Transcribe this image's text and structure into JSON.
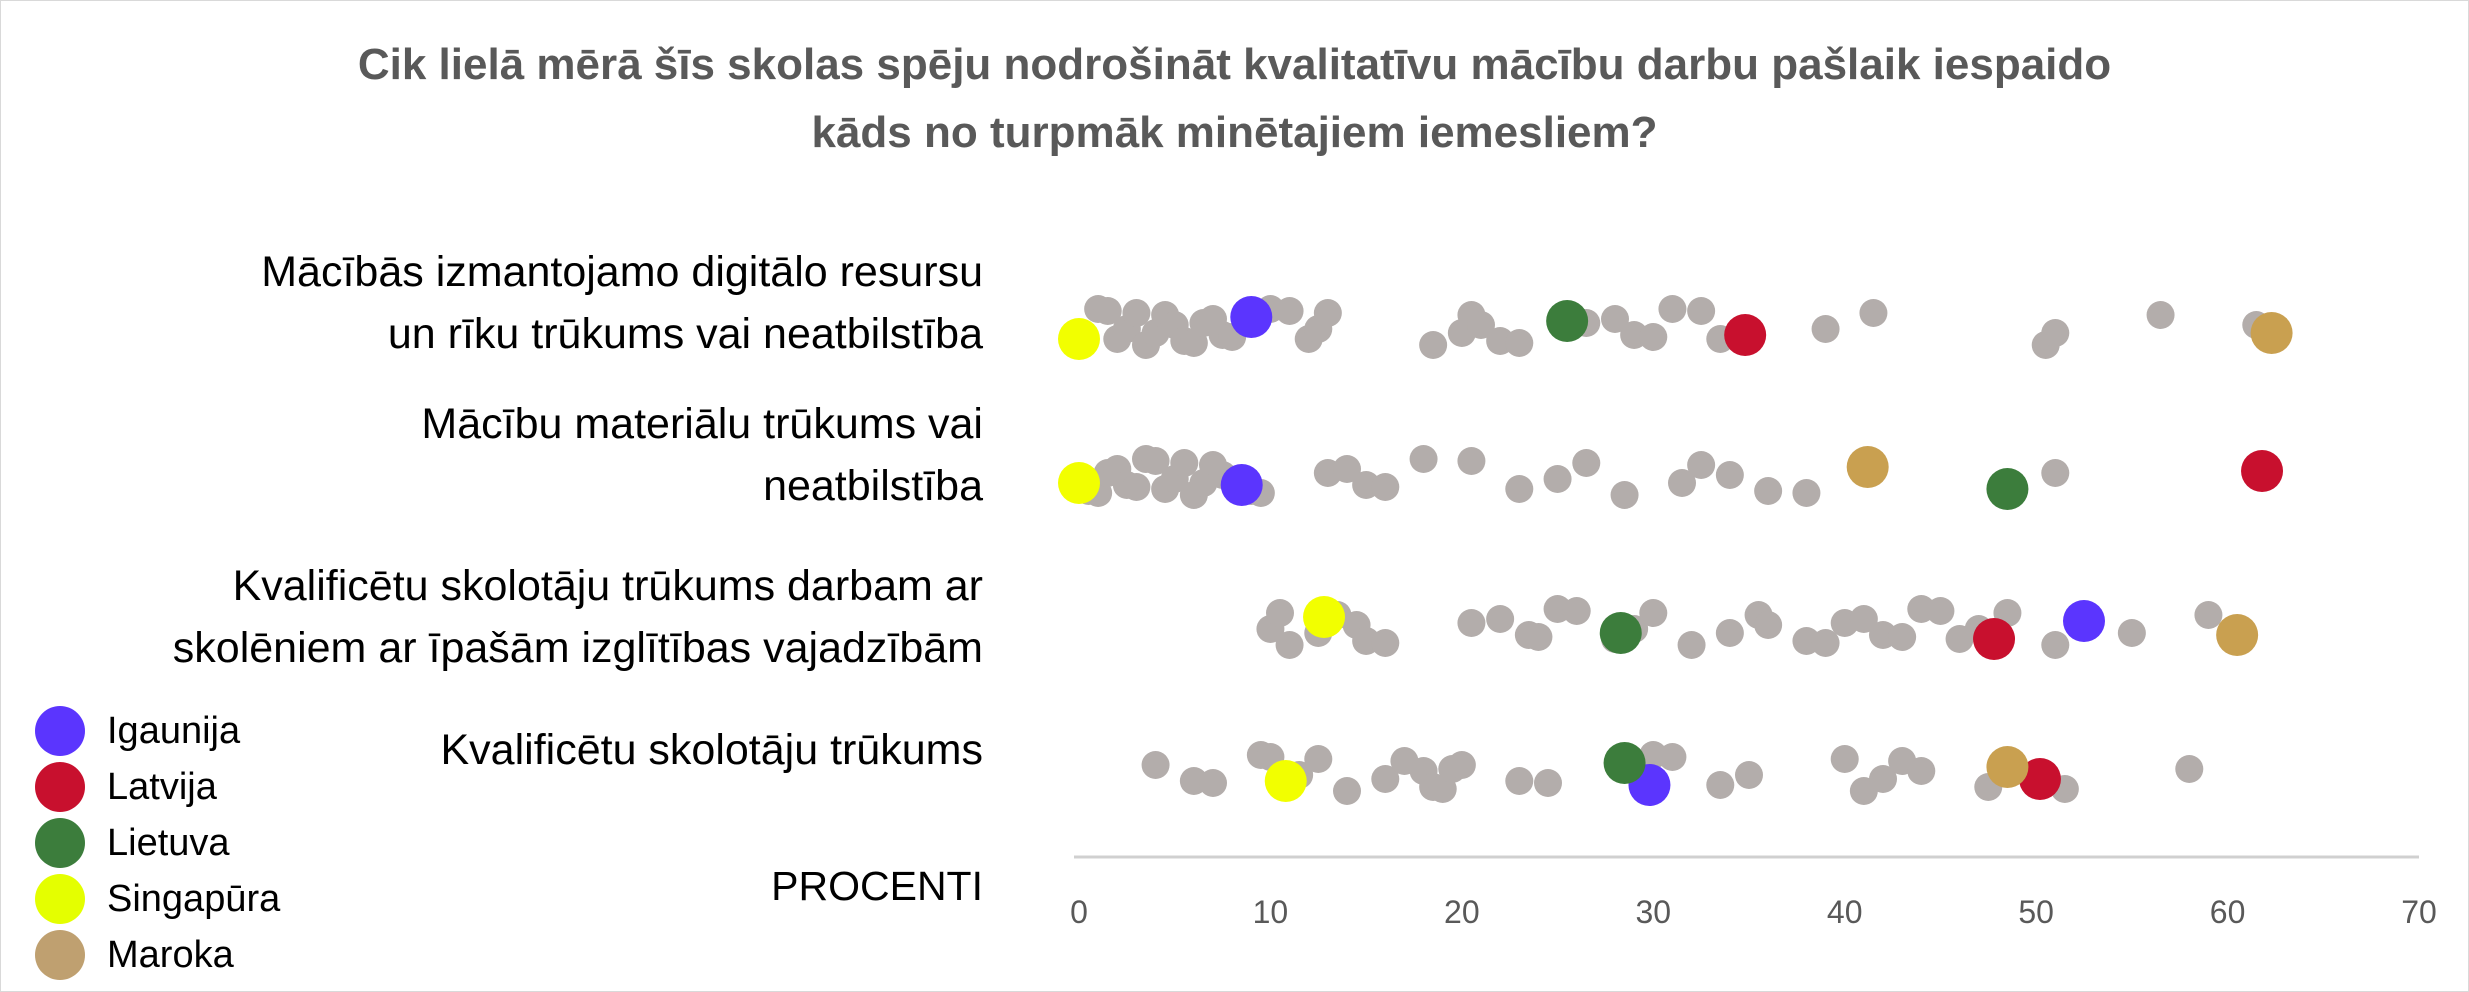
{
  "chart_data": {
    "type": "scatter",
    "title": [
      "Cik lielā mērā šīs skolas spēju nodrošināt kvalitatīvu mācību darbu pašlaik iespaido",
      "kāds no turpmāk minētajiem iemesliem?"
    ],
    "xlabel": "PROCENTI",
    "xlim": [
      0,
      70
    ],
    "xticks": [
      0,
      10,
      20,
      30,
      40,
      50,
      60,
      70
    ],
    "grid": false,
    "legend_position": "bottom-left",
    "categories": [
      [
        "Mācībās izmantojamo digitālo resursu",
        "un rīku trūkums vai neatbilstība"
      ],
      [
        "Mācību materiālu trūkums vai",
        "neatbilstība"
      ],
      [
        "Kvalificētu skolotāju trūkums darbam ar",
        "skolēniem ar īpašām izglītības vajadzībām"
      ],
      [
        "Kvalificētu skolotāju trūkums"
      ]
    ],
    "other_countries_color": "#b3adab",
    "other_countries": [
      [
        1,
        1.5,
        2,
        2.5,
        3,
        3.5,
        4,
        4.5,
        5,
        5.5,
        6,
        6.5,
        7,
        7.5,
        8,
        10,
        11,
        12,
        12.5,
        13,
        18.5,
        20,
        20.5,
        21,
        22,
        23,
        26.5,
        28,
        29,
        30,
        31,
        32.5,
        33.5,
        39,
        41.5,
        50.5,
        51,
        56.5,
        61.5
      ],
      [
        0.5,
        1,
        1.5,
        2,
        2.5,
        3,
        3.5,
        4,
        4.5,
        5,
        5.5,
        6,
        6.5,
        7,
        7.5,
        9,
        9.5,
        13,
        14,
        15,
        16,
        18,
        20.5,
        23,
        25,
        26.5,
        28.5,
        31.5,
        32.5,
        34,
        36,
        38,
        51
      ],
      [
        10,
        10.5,
        11,
        12.5,
        13.5,
        14.5,
        15,
        16,
        20.5,
        22,
        23.5,
        24,
        25,
        26,
        28,
        29,
        30,
        32,
        34,
        35.5,
        36,
        38,
        39,
        40,
        41,
        42,
        43,
        44,
        45,
        46,
        47,
        48.5,
        51,
        55,
        59
      ],
      [
        4,
        6,
        7,
        9.5,
        10,
        11,
        11.5,
        12.5,
        14,
        16,
        17,
        18,
        18.5,
        19,
        19.5,
        20,
        23,
        24.5,
        30,
        31,
        33.5,
        35,
        40,
        41,
        42,
        43,
        44,
        47.5,
        51.5,
        58
      ]
    ],
    "series": [
      {
        "name": "Igaunija",
        "color": "#5b35fe",
        "values": [
          9,
          8.5,
          52.5,
          29.8
        ]
      },
      {
        "name": "Latvija",
        "color": "#c8102e",
        "values": [
          34.8,
          61.8,
          47.8,
          50.2
        ]
      },
      {
        "name": "Lietuva",
        "color": "#3c7d3c",
        "values": [
          25.5,
          48.5,
          28.3,
          28.5
        ]
      },
      {
        "name": "Singapūra",
        "color": "#f2ff00",
        "values": [
          0,
          0,
          12.8,
          10.8
        ]
      },
      {
        "name": "Maroka",
        "color": "#c9a050",
        "values": [
          62.3,
          41.2,
          60.5,
          48.5
        ]
      }
    ]
  },
  "legend": {
    "items": [
      {
        "name": "Igaunija",
        "color": "#5b35fe"
      },
      {
        "name": "Latvija",
        "color": "#c8102e"
      },
      {
        "name": "Lietuva",
        "color": "#3c7d3c"
      },
      {
        "name": "Singapūra",
        "color": "#e4ff00"
      },
      {
        "name": "Maroka",
        "color": "#bfa070"
      }
    ]
  }
}
